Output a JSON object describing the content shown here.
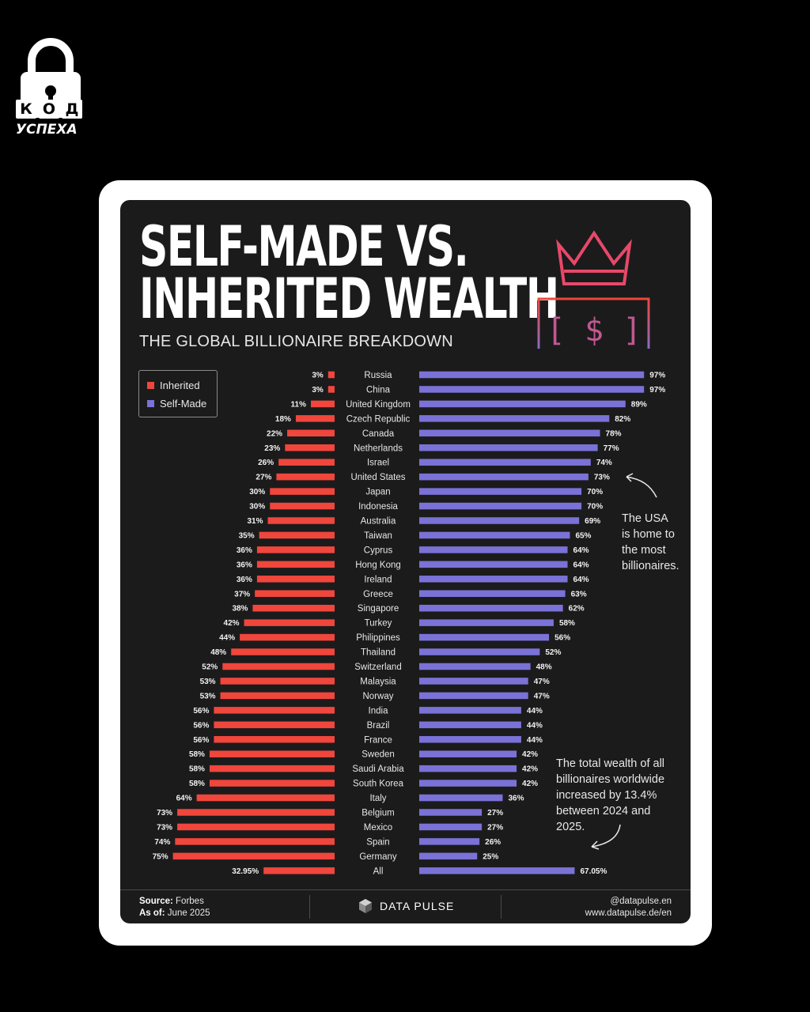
{
  "brand": {
    "badge_letters": [
      "К",
      "О",
      "Д"
    ],
    "badge_word": "УСПЕХА"
  },
  "header": {
    "title_line1": "SELF-MADE VS.",
    "title_line2": "INHERITED WEALTH",
    "subtitle": "THE GLOBAL BILLIONAIRE BREAKDOWN",
    "icon_symbol": "[ $ ]"
  },
  "legend": {
    "inherited": "Inherited",
    "self_made": "Self-Made"
  },
  "colors": {
    "inherited": "#f0463c",
    "self_made": "#7a72d6",
    "background": "#1b1b1c"
  },
  "chart_data": {
    "type": "bar",
    "orientation": "horizontal-diverging",
    "categories": [
      "Russia",
      "China",
      "United Kingdom",
      "Czech Republic",
      "Canada",
      "Netherlands",
      "Israel",
      "United States",
      "Japan",
      "Indonesia",
      "Australia",
      "Taiwan",
      "Cyprus",
      "Hong Kong",
      "Ireland",
      "Greece",
      "Singapore",
      "Turkey",
      "Philippines",
      "Thailand",
      "Switzerland",
      "Malaysia",
      "Norway",
      "India",
      "Brazil",
      "France",
      "Sweden",
      "Saudi Arabia",
      "South Korea",
      "Italy",
      "Belgium",
      "Mexico",
      "Spain",
      "Germany",
      "All"
    ],
    "series": [
      {
        "name": "Inherited",
        "values": [
          3,
          3,
          11,
          18,
          22,
          23,
          26,
          27,
          30,
          30,
          31,
          35,
          36,
          36,
          36,
          37,
          38,
          42,
          44,
          48,
          52,
          53,
          53,
          56,
          56,
          56,
          58,
          58,
          58,
          64,
          73,
          73,
          74,
          75,
          32.95
        ],
        "labels": [
          "3%",
          "3%",
          "11%",
          "18%",
          "22%",
          "23%",
          "26%",
          "27%",
          "30%",
          "30%",
          "31%",
          "35%",
          "36%",
          "36%",
          "36%",
          "37%",
          "38%",
          "42%",
          "44%",
          "48%",
          "52%",
          "53%",
          "53%",
          "56%",
          "56%",
          "56%",
          "58%",
          "58%",
          "58%",
          "64%",
          "73%",
          "73%",
          "74%",
          "75%",
          "32.95%"
        ]
      },
      {
        "name": "Self-Made",
        "values": [
          97,
          97,
          89,
          82,
          78,
          77,
          74,
          73,
          70,
          70,
          69,
          65,
          64,
          64,
          64,
          63,
          62,
          58,
          56,
          52,
          48,
          47,
          47,
          44,
          44,
          44,
          42,
          42,
          42,
          36,
          27,
          27,
          26,
          25,
          67.05
        ],
        "labels": [
          "97%",
          "97%",
          "89%",
          "82%",
          "78%",
          "77%",
          "74%",
          "73%",
          "70%",
          "70%",
          "69%",
          "65%",
          "64%",
          "64%",
          "64%",
          "63%",
          "62%",
          "58%",
          "56%",
          "52%",
          "48%",
          "47%",
          "47%",
          "44%",
          "44%",
          "44%",
          "42%",
          "42%",
          "42%",
          "36%",
          "27%",
          "27%",
          "26%",
          "25%",
          "67.05%"
        ]
      }
    ],
    "xlim": [
      0,
      100
    ],
    "legend_position": "top-left"
  },
  "annotations": {
    "usa_note": [
      "The USA",
      "is home to",
      "the most",
      "billionaires."
    ],
    "wealth_note": [
      "The total wealth of all",
      "billionaires worldwide",
      "increased by 13.4%",
      "between 2024 and",
      "2025."
    ]
  },
  "footer": {
    "source_label": "Source:",
    "source_value": "Forbes",
    "asof_label": "As of:",
    "asof_value": "June 2025",
    "brand_name": "DATA PULSE",
    "handle": "@datapulse.en",
    "website": "www.datapulse.de/en"
  }
}
